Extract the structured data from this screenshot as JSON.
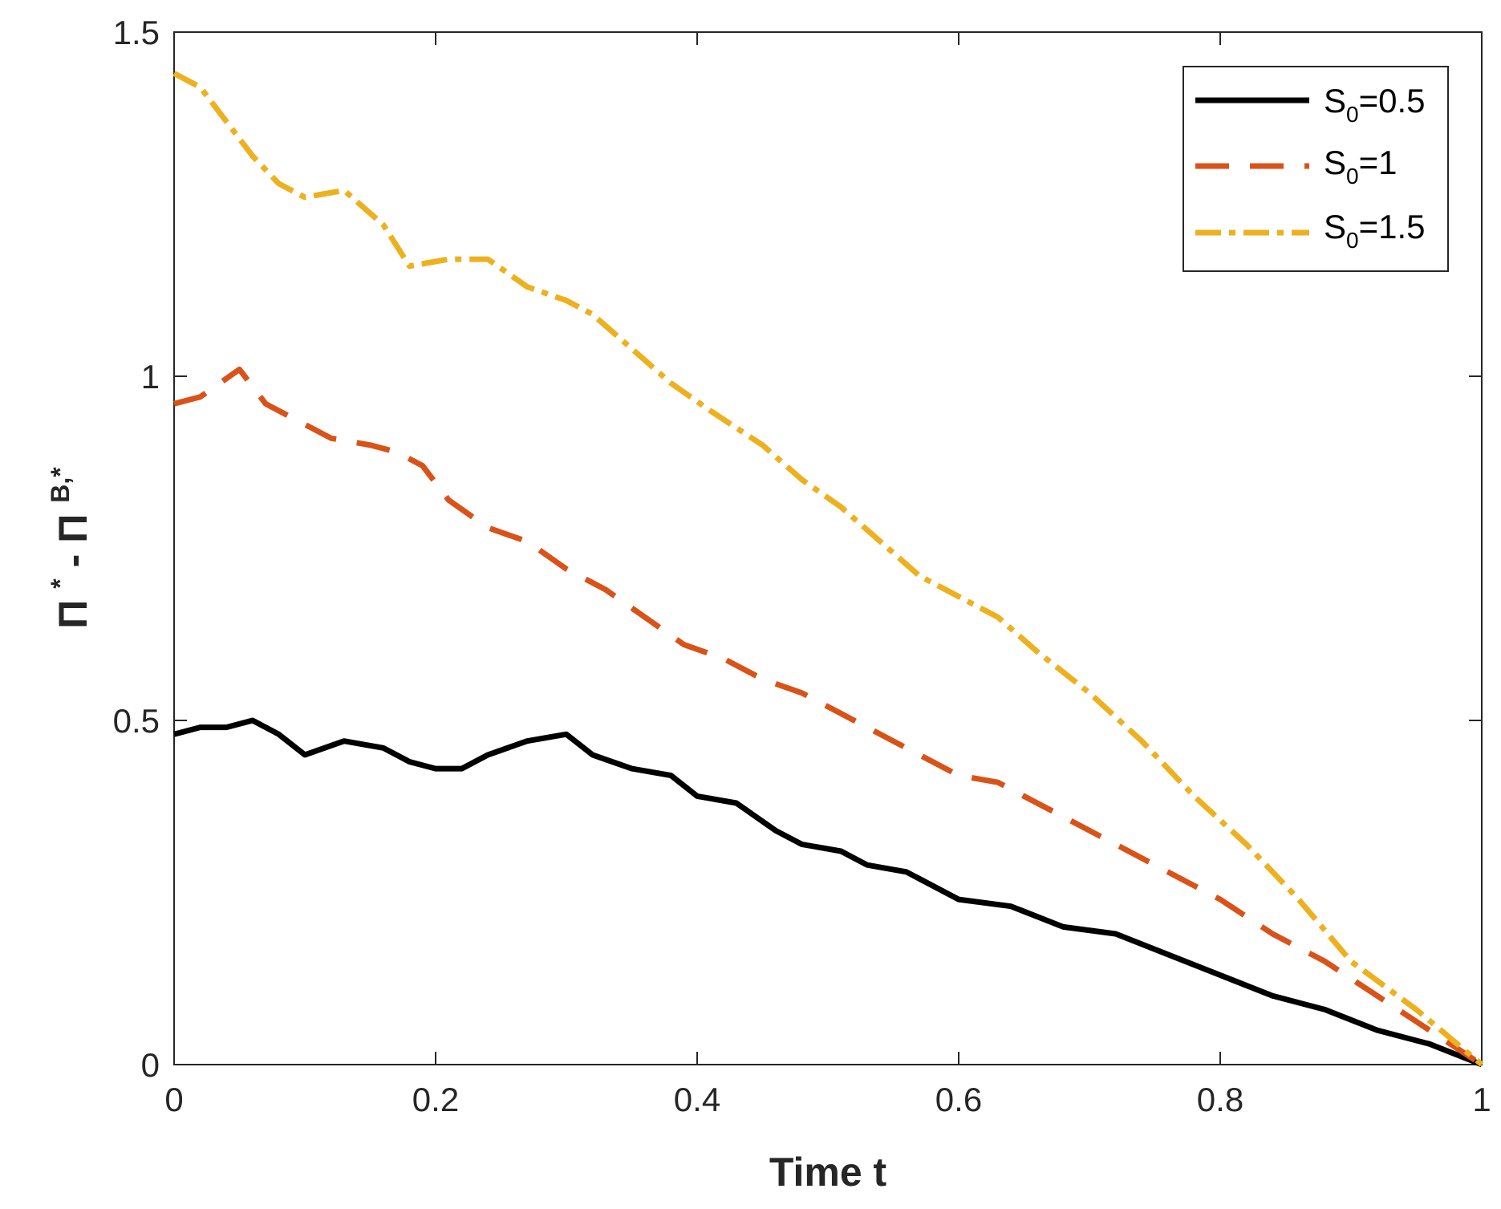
{
  "chart_data": {
    "type": "line",
    "title": "",
    "xlabel": "Time t",
    "ylabel": {
      "base1": "Π",
      "sup1": "*",
      "minus": "-",
      "base2": "Π",
      "sup2": "B,*"
    },
    "xlim": [
      0,
      1
    ],
    "ylim": [
      0,
      1.5
    ],
    "xticks": [
      0,
      0.2,
      0.4,
      0.6,
      0.8,
      1
    ],
    "xtick_labels": [
      "0",
      "0.2",
      "0.4",
      "0.6",
      "0.8",
      "1"
    ],
    "yticks": [
      0,
      0.5,
      1,
      1.5
    ],
    "ytick_labels": [
      "0",
      "0.5",
      "1",
      "1.5"
    ],
    "grid": false,
    "legend_position": "top-right",
    "series": [
      {
        "name": "S0=0.5",
        "label_main": "S",
        "label_sub": "0",
        "label_rest": "=0.5",
        "color": "#000000",
        "style": "solid",
        "x": [
          0,
          0.02,
          0.04,
          0.06,
          0.08,
          0.1,
          0.13,
          0.16,
          0.18,
          0.2,
          0.22,
          0.24,
          0.27,
          0.3,
          0.32,
          0.35,
          0.38,
          0.4,
          0.43,
          0.46,
          0.48,
          0.51,
          0.53,
          0.56,
          0.6,
          0.64,
          0.68,
          0.72,
          0.76,
          0.8,
          0.84,
          0.88,
          0.92,
          0.96,
          1
        ],
        "y": [
          0.48,
          0.49,
          0.49,
          0.5,
          0.48,
          0.45,
          0.47,
          0.46,
          0.44,
          0.43,
          0.43,
          0.45,
          0.47,
          0.48,
          0.45,
          0.43,
          0.42,
          0.39,
          0.38,
          0.34,
          0.32,
          0.31,
          0.29,
          0.28,
          0.24,
          0.23,
          0.2,
          0.19,
          0.16,
          0.13,
          0.1,
          0.08,
          0.05,
          0.03,
          0
        ]
      },
      {
        "name": "S0=1",
        "label_main": "S",
        "label_sub": "0",
        "label_rest": "=1",
        "color": "#d95319",
        "style": "dashed",
        "x": [
          0,
          0.02,
          0.05,
          0.07,
          0.09,
          0.12,
          0.15,
          0.17,
          0.19,
          0.21,
          0.24,
          0.27,
          0.3,
          0.33,
          0.36,
          0.39,
          0.42,
          0.45,
          0.48,
          0.51,
          0.54,
          0.57,
          0.6,
          0.63,
          0.66,
          0.69,
          0.72,
          0.76,
          0.8,
          0.84,
          0.88,
          0.92,
          0.96,
          1
        ],
        "y": [
          0.96,
          0.97,
          1.01,
          0.96,
          0.94,
          0.91,
          0.9,
          0.89,
          0.87,
          0.82,
          0.78,
          0.76,
          0.72,
          0.69,
          0.65,
          0.61,
          0.59,
          0.56,
          0.54,
          0.51,
          0.48,
          0.45,
          0.42,
          0.41,
          0.38,
          0.35,
          0.32,
          0.28,
          0.24,
          0.19,
          0.15,
          0.1,
          0.05,
          0
        ]
      },
      {
        "name": "S0=1.5",
        "label_main": "S",
        "label_sub": "0",
        "label_rest": "=1.5",
        "color": "#edb120",
        "style": "dashdot",
        "x": [
          0,
          0.02,
          0.04,
          0.06,
          0.08,
          0.1,
          0.13,
          0.16,
          0.18,
          0.21,
          0.24,
          0.27,
          0.3,
          0.32,
          0.35,
          0.38,
          0.41,
          0.45,
          0.48,
          0.51,
          0.54,
          0.57,
          0.6,
          0.63,
          0.66,
          0.7,
          0.74,
          0.78,
          0.82,
          0.86,
          0.9,
          0.95,
          1
        ],
        "y": [
          1.44,
          1.42,
          1.37,
          1.32,
          1.28,
          1.26,
          1.27,
          1.22,
          1.16,
          1.17,
          1.17,
          1.13,
          1.11,
          1.09,
          1.04,
          0.99,
          0.95,
          0.9,
          0.85,
          0.81,
          0.76,
          0.71,
          0.68,
          0.65,
          0.6,
          0.54,
          0.47,
          0.39,
          0.32,
          0.24,
          0.15,
          0.08,
          0
        ]
      }
    ]
  }
}
